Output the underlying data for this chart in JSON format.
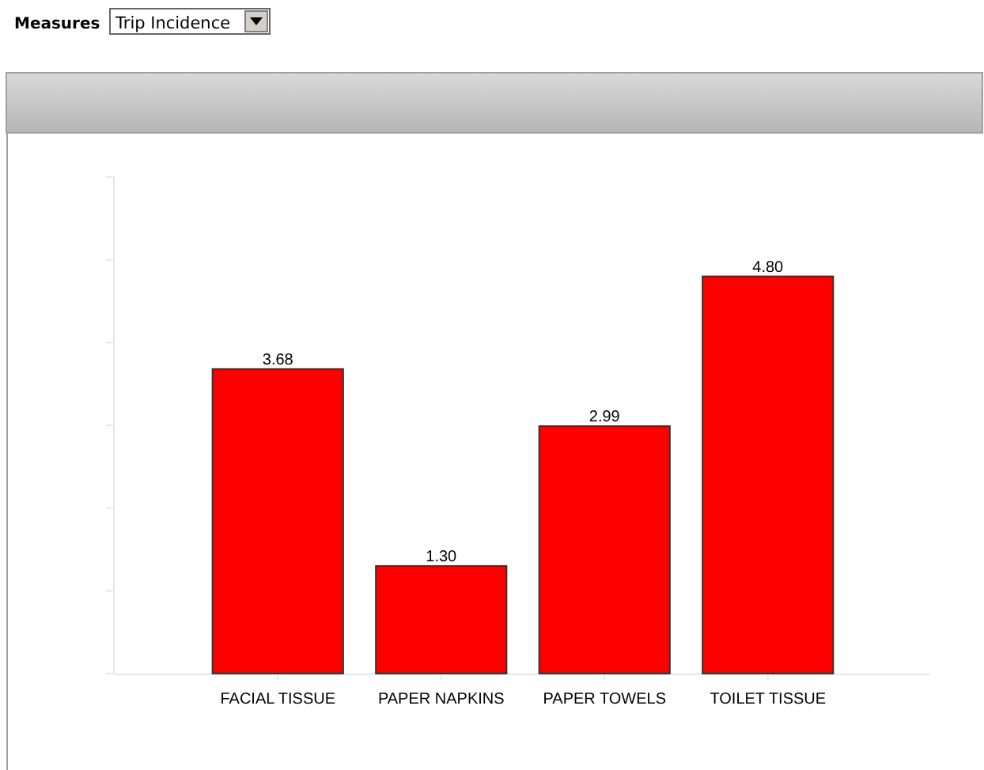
{
  "chart_data": {
    "type": "bar",
    "categories": [
      "FACIAL TISSUE",
      "PAPER NAPKINS",
      "PAPER TOWELS",
      "TOILET TISSUE"
    ],
    "values": [
      3.68,
      1.3,
      2.99,
      4.8
    ],
    "value_labels": [
      "3.68",
      "1.30",
      "2.99",
      "4.80"
    ],
    "color": "#ff0000",
    "ylim": [
      0,
      6
    ],
    "yticks": [
      {
        "value": 0,
        "label": null
      },
      {
        "value": 1,
        "label": null
      },
      {
        "value": 2,
        "label": null
      },
      {
        "value": 3,
        "label": null
      },
      {
        "value": 4,
        "label": null
      },
      {
        "value": 5,
        "label": null
      },
      {
        "value": 6,
        "label": null
      }
    ],
    "tick_labels": "x",
    "annotations": [
      "Measures",
      "Trip Incidence"
    ]
  }
}
